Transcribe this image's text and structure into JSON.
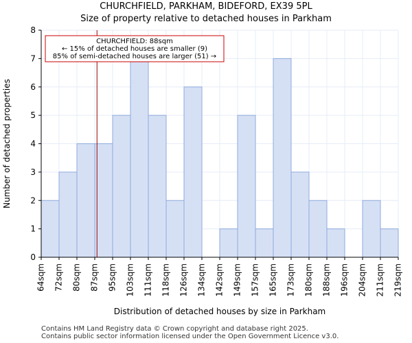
{
  "title_line1": "CHURCHFIELD, PARKHAM, BIDEFORD, EX39 5PL",
  "title_line2": "Size of property relative to detached houses in Parkham",
  "footer_line1": "Contains HM Land Registry data © Crown copyright and database right 2025.",
  "footer_line2": "Contains public sector information licensed under the Open Government Licence v3.0.",
  "chart_data": {
    "type": "bar",
    "xlabel": "Distribution of detached houses by size in Parkham",
    "ylabel": "Number of detached properties",
    "ylim": [
      0,
      8
    ],
    "yticks": [
      0,
      1,
      2,
      3,
      4,
      5,
      6,
      7,
      8
    ],
    "bin_edges": [
      64,
      72,
      80,
      87,
      95,
      103,
      111,
      118,
      126,
      134,
      142,
      149,
      157,
      165,
      173,
      180,
      188,
      196,
      204,
      211,
      219
    ],
    "tick_labels": [
      "64sqm",
      "72sqm",
      "80sqm",
      "87sqm",
      "95sqm",
      "103sqm",
      "111sqm",
      "118sqm",
      "126sqm",
      "134sqm",
      "142sqm",
      "149sqm",
      "157sqm",
      "165sqm",
      "173sqm",
      "180sqm",
      "188sqm",
      "196sqm",
      "204sqm",
      "211sqm",
      "219sqm"
    ],
    "values": [
      2,
      3,
      4,
      4,
      5,
      7,
      5,
      2,
      6,
      0,
      1,
      5,
      1,
      7,
      3,
      2,
      1,
      0,
      2,
      1
    ],
    "bar_color": "#d6e0f5",
    "bar_edge_color": "#8eaadb",
    "marker": {
      "x": 88,
      "color": "#990000"
    },
    "annotation": {
      "lines": [
        "CHURCHFIELD: 88sqm",
        "← 15% of detached houses are smaller (9)",
        "85% of semi-detached houses are larger (51) →"
      ],
      "border_color": "#cc0000"
    },
    "grid": true
  }
}
